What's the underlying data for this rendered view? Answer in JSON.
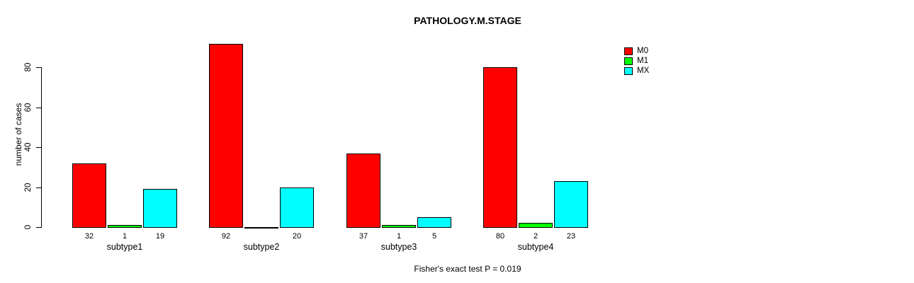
{
  "chart_data": {
    "type": "bar",
    "title": "PATHOLOGY.M.STAGE",
    "ylabel": "number of cases",
    "xlabel": "",
    "categories": [
      "subtype1",
      "subtype2",
      "subtype3",
      "subtype4"
    ],
    "series": [
      {
        "name": "M0",
        "color": "#ff0000",
        "values": [
          32,
          92,
          37,
          80
        ]
      },
      {
        "name": "M1",
        "color": "#00ff00",
        "values": [
          1,
          0,
          1,
          2
        ]
      },
      {
        "name": "MX",
        "color": "#00ffff",
        "values": [
          19,
          20,
          5,
          23
        ]
      }
    ],
    "bar_value_labels": [
      [
        "32",
        "1",
        "19"
      ],
      [
        "92",
        "",
        "20"
      ],
      [
        "37",
        "1",
        "5"
      ],
      [
        "80",
        "2",
        "23"
      ]
    ],
    "ylim": [
      0,
      92
    ],
    "yticks": [
      0,
      20,
      40,
      60,
      80
    ],
    "y_tick_labels": [
      "0",
      "20",
      "40",
      "60",
      "80"
    ],
    "grid": false,
    "legend_position": "top-right",
    "annotation": "Fisher's exact test P = 0.019",
    "axis_color": "#000000",
    "background_color": "#ffffff"
  }
}
